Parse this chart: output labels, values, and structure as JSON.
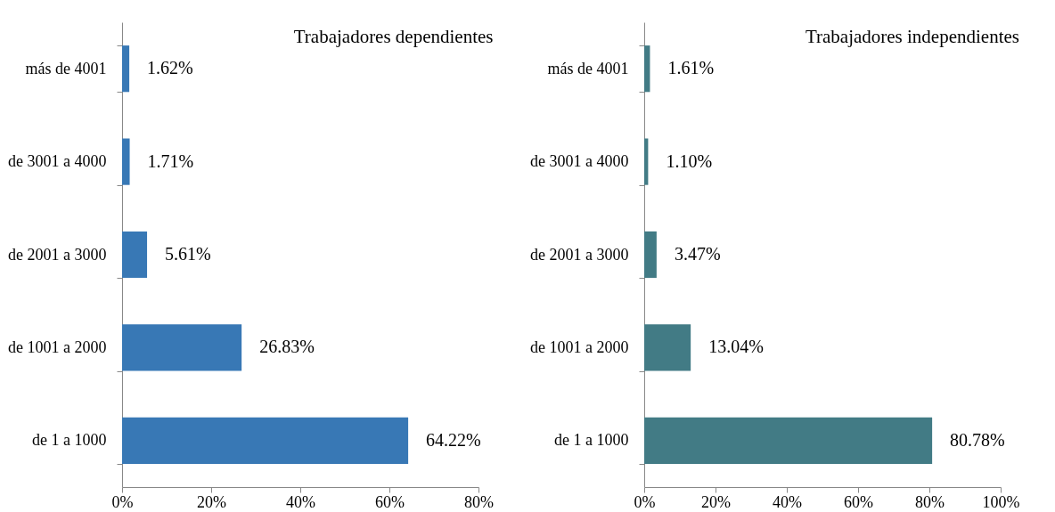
{
  "chart_data": [
    {
      "type": "bar",
      "orientation": "horizontal",
      "title": "Trabajadores dependientes",
      "categories": [
        "más de 4001",
        "de 3001 a 4000",
        "de 2001 a 3000",
        "de 1001 a 2000",
        "de 1 a 1000"
      ],
      "values": [
        1.62,
        1.71,
        5.61,
        26.83,
        64.22
      ],
      "value_labels": [
        "1.62%",
        "1.71%",
        "5.61%",
        "26.83%",
        "64.22%"
      ],
      "color": "#3878b5",
      "xlim": [
        0,
        80
      ],
      "xticks": [
        {
          "value": 0,
          "label": "0%"
        },
        {
          "value": 20,
          "label": "20%"
        },
        {
          "value": 40,
          "label": "40%"
        },
        {
          "value": 60,
          "label": "60%"
        },
        {
          "value": 80,
          "label": "80%"
        }
      ],
      "grid": false
    },
    {
      "type": "bar",
      "orientation": "horizontal",
      "title": "Trabajadores independientes",
      "categories": [
        "más de 4001",
        "de 3001 a 4000",
        "de 2001 a 3000",
        "de 1001 a 2000",
        "de 1 a 1000"
      ],
      "values": [
        1.61,
        1.1,
        3.47,
        13.04,
        80.78
      ],
      "value_labels": [
        "1.61%",
        "1.10%",
        "3.47%",
        "13.04%",
        "80.78%"
      ],
      "color": "#427b85",
      "xlim": [
        0,
        100
      ],
      "xticks": [
        {
          "value": 0,
          "label": "0%"
        },
        {
          "value": 20,
          "label": "20%"
        },
        {
          "value": 40,
          "label": "40%"
        },
        {
          "value": 60,
          "label": "60%"
        },
        {
          "value": 80,
          "label": "80%"
        },
        {
          "value": 100,
          "label": "100%"
        }
      ],
      "grid": false
    }
  ]
}
